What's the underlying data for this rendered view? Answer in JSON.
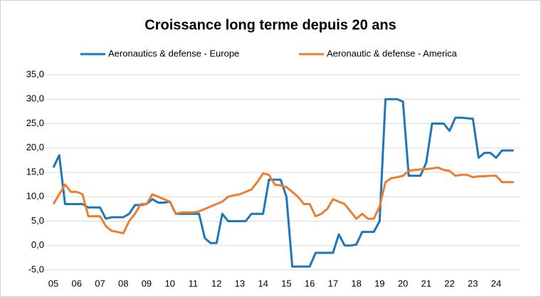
{
  "chart_data": {
    "type": "line",
    "title": "Croissance  long terme depuis 20 ans",
    "categories": [
      "05",
      null,
      null,
      null,
      "06",
      null,
      null,
      null,
      "07",
      null,
      null,
      null,
      "08",
      null,
      null,
      null,
      "09",
      null,
      null,
      null,
      "10",
      null,
      null,
      null,
      "11",
      null,
      null,
      null,
      "12",
      null,
      null,
      null,
      "13",
      null,
      null,
      null,
      "14",
      null,
      null,
      null,
      "15",
      null,
      null,
      null,
      "16",
      null,
      null,
      null,
      "17",
      null,
      null,
      null,
      "18",
      null,
      null,
      null,
      "19",
      null,
      null,
      null,
      "20",
      null,
      null,
      null,
      "21",
      null,
      null,
      null,
      "22",
      null,
      null,
      null,
      "23",
      null,
      null,
      null,
      "24",
      null,
      null,
      null
    ],
    "series": [
      {
        "name": "Aeronautics & defense - Europe",
        "color": "#1f77b8",
        "values": [
          16,
          18.5,
          8.5,
          8.5,
          8.5,
          8.5,
          7.8,
          7.8,
          7.8,
          5.5,
          5.8,
          5.8,
          5.8,
          6.5,
          8.3,
          8.3,
          8.5,
          9.5,
          8.8,
          8.8,
          9.0,
          6.5,
          6.5,
          6.5,
          6.5,
          6.5,
          1.5,
          0.5,
          0.5,
          6.5,
          5.0,
          5.0,
          5.0,
          5.0,
          6.5,
          6.5,
          6.5,
          13.5,
          13.5,
          13.5,
          10,
          -4.3,
          -4.3,
          -4.3,
          -4.3,
          -1.5,
          -1.5,
          -1.5,
          -1.5,
          2.3,
          0,
          0,
          0.2,
          2.8,
          2.8,
          2.8,
          5,
          30,
          30,
          30,
          29.5,
          14.3,
          14.3,
          14.3,
          17,
          25,
          25,
          25,
          23.5,
          26.2,
          26.2,
          26.1,
          26,
          18,
          19,
          19,
          18,
          19.5,
          19.5,
          19.5
        ]
      },
      {
        "name": "Aeronautic & defense - America",
        "color": "#ed7d31",
        "values": [
          8.5,
          10.5,
          12.5,
          11,
          11,
          10.5,
          6,
          6,
          6,
          4,
          3,
          2.8,
          2.5,
          5,
          6.5,
          8.5,
          8.5,
          10.5,
          10,
          9.5,
          9,
          6.5,
          6.8,
          6.8,
          6.8,
          7,
          7.5,
          8,
          8.5,
          9,
          10,
          10.3,
          10.5,
          11,
          11.5,
          13,
          14.8,
          14.5,
          12.5,
          12.3,
          12,
          11,
          10,
          8.5,
          8.5,
          6,
          6.5,
          7.5,
          9.5,
          9,
          8.5,
          7,
          5.5,
          6.5,
          5.5,
          5.5,
          8,
          13,
          13.8,
          14,
          14.3,
          15.3,
          15.5,
          15.6,
          15.7,
          15.8,
          16,
          15.5,
          15.3,
          14.3,
          14.5,
          14.5,
          14,
          14.2,
          14.2,
          14.3,
          14.3,
          13,
          13,
          13
        ]
      }
    ],
    "ylim": [
      -5,
      35
    ],
    "yticks": [
      {
        "value": -5,
        "label": "-5,0"
      },
      {
        "value": 0,
        "label": "0,0"
      },
      {
        "value": 5,
        "label": "5,0"
      },
      {
        "value": 10,
        "label": "10,0"
      },
      {
        "value": 15,
        "label": "15,0"
      },
      {
        "value": 20,
        "label": "20,0"
      },
      {
        "value": 25,
        "label": "25,0"
      },
      {
        "value": 30,
        "label": "30,0"
      },
      {
        "value": 35,
        "label": "35,0"
      }
    ],
    "grid": true,
    "legend": "top"
  }
}
